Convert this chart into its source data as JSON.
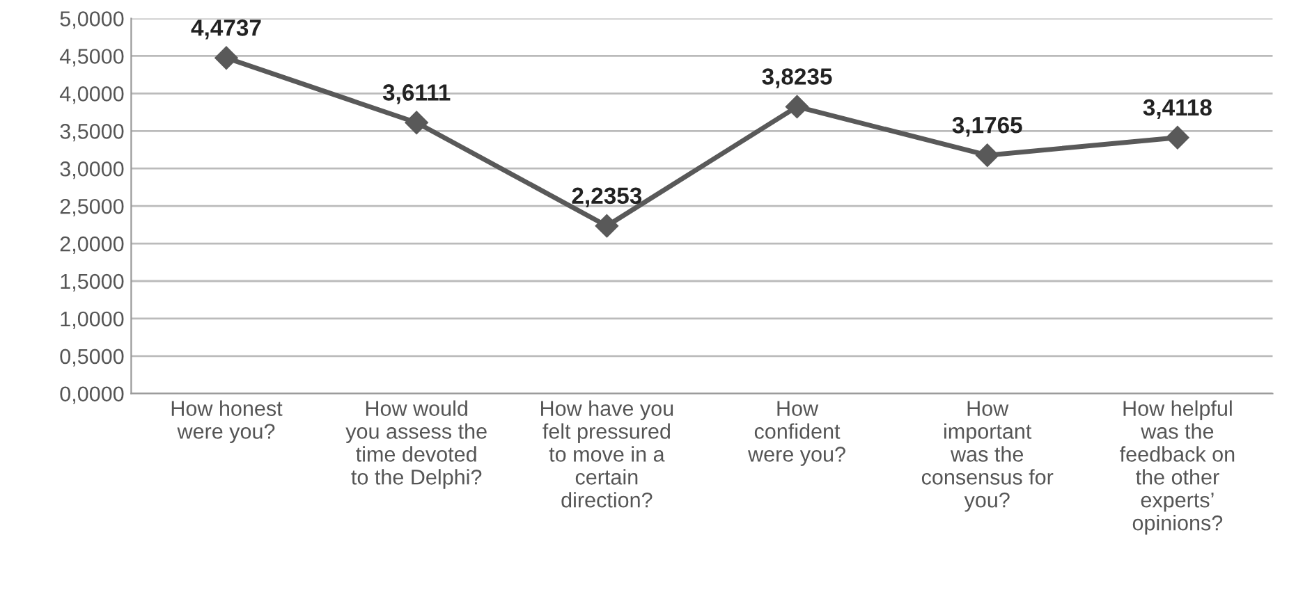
{
  "chart_data": {
    "type": "line",
    "categories": [
      "How honest\nwere you?",
      "How would\nyou assess the\ntime devoted\nto the Delphi?",
      "How have you\nfelt pressured\nto move in a\ncertain\ndirection?",
      "How\nconfident\nwere you?",
      "How\nimportant\nwas the\nconsensus for\nyou?",
      "How helpful\nwas the\nfeedback on\nthe other\nexperts’\nopinions?"
    ],
    "series": [
      {
        "color": "#595959",
        "values": [
          4.4737,
          3.6111,
          2.2353,
          3.8235,
          3.1765,
          3.4118
        ],
        "value_labels": [
          "4,4737",
          "3,6111",
          "2,2353",
          "3,8235",
          "3,1765",
          "3,4118"
        ]
      }
    ],
    "ylim": [
      0,
      5
    ],
    "yticks": [
      {
        "value": 0,
        "label": "0,0000"
      },
      {
        "value": 0.5,
        "label": "0,5000"
      },
      {
        "value": 1,
        "label": "1,0000"
      },
      {
        "value": 1.5,
        "label": "1,5000"
      },
      {
        "value": 2,
        "label": "2,0000"
      },
      {
        "value": 2.5,
        "label": "2,5000"
      },
      {
        "value": 3,
        "label": "3,0000"
      },
      {
        "value": 3.5,
        "label": "3,5000"
      },
      {
        "value": 4,
        "label": "4,0000"
      },
      {
        "value": 4.5,
        "label": "4,5000"
      },
      {
        "value": 5,
        "label": "5,0000"
      }
    ],
    "grid": "y",
    "marker": "diamond",
    "line_style": "solid",
    "legend": false
  }
}
